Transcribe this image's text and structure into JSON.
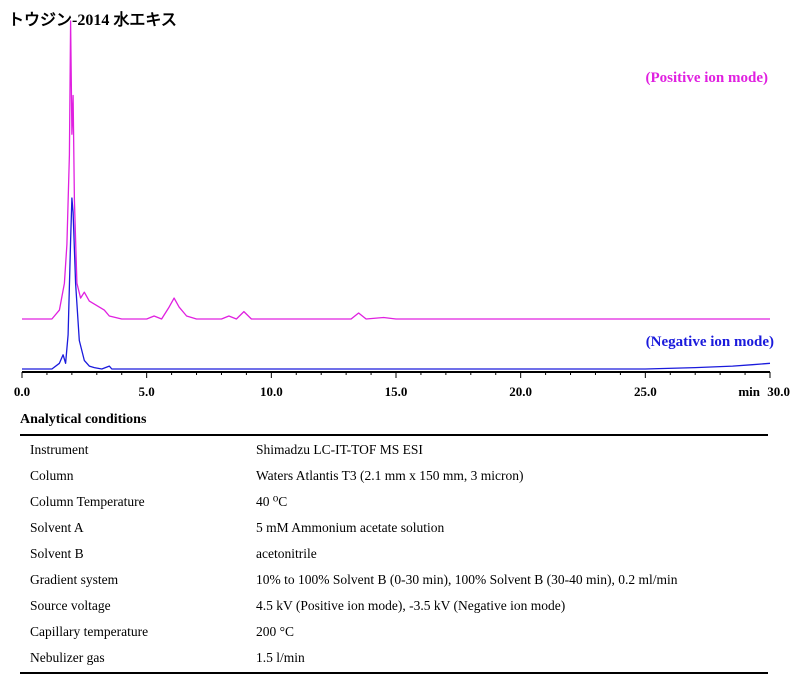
{
  "title": "トウジン-2014 水エキス",
  "chart_data": {
    "type": "line",
    "x_unit_label": "min",
    "xlim": [
      0,
      30
    ],
    "x_ticks": [
      "0.0",
      "5.0",
      "10.0",
      "15.0",
      "20.0",
      "25.0",
      "30.0"
    ],
    "x_tick_values": [
      0,
      5,
      10,
      15,
      20,
      25,
      30
    ],
    "series": [
      {
        "name": "(Positive ion mode)",
        "color": "#e020e0",
        "x": [
          0.0,
          1.2,
          1.5,
          1.7,
          1.8,
          1.9,
          1.95,
          2.0,
          2.05,
          2.1,
          2.2,
          2.35,
          2.5,
          2.7,
          2.9,
          3.1,
          3.3,
          3.5,
          4.0,
          5.0,
          5.3,
          5.6,
          5.9,
          6.1,
          6.3,
          6.6,
          7.0,
          8.0,
          8.3,
          8.6,
          8.9,
          9.2,
          10.0,
          12.0,
          13.2,
          13.5,
          13.8,
          14.5,
          15.0,
          20.0,
          25.0,
          30.0
        ],
        "y": [
          0.0,
          0.0,
          0.03,
          0.12,
          0.25,
          0.55,
          1.0,
          0.62,
          0.75,
          0.4,
          0.12,
          0.07,
          0.09,
          0.06,
          0.05,
          0.04,
          0.03,
          0.01,
          0.0,
          0.0,
          0.01,
          0.0,
          0.04,
          0.07,
          0.04,
          0.01,
          0.0,
          0.0,
          0.01,
          0.0,
          0.025,
          0.0,
          0.0,
          0.0,
          0.0,
          0.02,
          0.0,
          0.005,
          0.0,
          0.0,
          0.0,
          0.0
        ]
      },
      {
        "name": "(Negative ion mode)",
        "color": "#1a1adc",
        "x": [
          0.0,
          1.2,
          1.5,
          1.65,
          1.75,
          1.85,
          1.95,
          2.0,
          2.05,
          2.15,
          2.3,
          2.5,
          2.7,
          2.9,
          3.2,
          3.5,
          3.6,
          4.0,
          10.0,
          15.0,
          20.0,
          25.0,
          27.0,
          28.5,
          29.3,
          30.0
        ],
        "y": [
          0.0,
          0.0,
          0.02,
          0.05,
          0.02,
          0.12,
          0.45,
          0.6,
          0.55,
          0.3,
          0.1,
          0.03,
          0.01,
          0.005,
          0.0,
          0.01,
          0.0,
          0.0,
          0.0,
          0.0,
          0.0,
          0.0,
          0.005,
          0.01,
          0.015,
          0.02
        ]
      }
    ]
  },
  "conditions": {
    "heading": "Analytical conditions",
    "rows": [
      {
        "label": "Instrument",
        "value": "Shimadzu LC-IT-TOF MS ESI"
      },
      {
        "label": "Column",
        "value": "Waters Atlantis T3 (2.1 mm x 150 mm, 3 micron)"
      },
      {
        "label": "Column Temperature",
        "value": "40 ⁰C"
      },
      {
        "label": "Solvent A",
        "value": "5 mM Ammonium acetate solution"
      },
      {
        "label": "Solvent B",
        "value": "acetonitrile"
      },
      {
        "label": "Gradient system",
        "value": "10% to 100% Solvent B (0-30 min), 100% Solvent B (30-40 min), 0.2 ml/min"
      },
      {
        "label": "Source voltage",
        "value": "4.5 kV (Positive ion mode), -3.5 kV (Negative ion mode)"
      },
      {
        "label": "Capillary temperature",
        "value": "200 °C"
      },
      {
        "label": "Nebulizer gas",
        "value": "1.5 l/min"
      }
    ]
  }
}
